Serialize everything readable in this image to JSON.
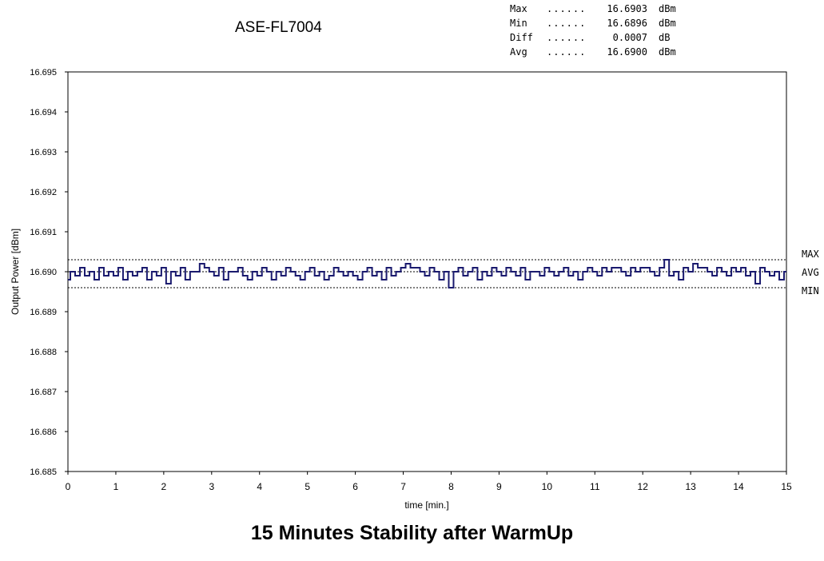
{
  "stats": {
    "rows": [
      {
        "name": "Max",
        "dots": "......",
        "value": "16.6903",
        "unit": "dBm"
      },
      {
        "name": "Min",
        "dots": "......",
        "value": "16.6896",
        "unit": "dBm"
      },
      {
        "name": "Diff",
        "dots": "......",
        "value": "0.0007",
        "unit": "dB"
      },
      {
        "name": "Avg",
        "dots": "......",
        "value": "16.6900",
        "unit": "dBm"
      }
    ]
  },
  "chart_data": {
    "type": "line",
    "title": "15 Minutes Stability after WarmUp",
    "subtitle": "ASE-FL7004",
    "xlabel": "time [min.]",
    "ylabel": "Output Power [dBm]",
    "xlim": [
      0,
      15
    ],
    "ylim": [
      16.685,
      16.695
    ],
    "xticks": [
      "0",
      "1",
      "2",
      "3",
      "4",
      "5",
      "6",
      "7",
      "8",
      "9",
      "10",
      "11",
      "12",
      "13",
      "14",
      "15"
    ],
    "yticks": [
      "16.685",
      "16.686",
      "16.687",
      "16.688",
      "16.689",
      "16.690",
      "16.691",
      "16.692",
      "16.693",
      "16.694",
      "16.695"
    ],
    "grid": false,
    "reference_lines": [
      {
        "label": "MAX",
        "value": 16.6903
      },
      {
        "label": "AVG",
        "value": 16.69
      },
      {
        "label": "MIN",
        "value": 16.6896
      }
    ],
    "series_color": "#1a1a6e",
    "series": [
      {
        "x": [
          0,
          0.1,
          0.2,
          0.3,
          0.4,
          0.5,
          0.6,
          0.7,
          0.8,
          0.9,
          1,
          1.1,
          1.2,
          1.3,
          1.4,
          1.5,
          1.6,
          1.7,
          1.8,
          1.9,
          2,
          2.1,
          2.2,
          2.3,
          2.4,
          2.5,
          2.6,
          2.7,
          2.8,
          2.9,
          3,
          3.1,
          3.2,
          3.3,
          3.4,
          3.5,
          3.6,
          3.7,
          3.8,
          3.9,
          4,
          4.1,
          4.2,
          4.3,
          4.4,
          4.5,
          4.6,
          4.7,
          4.8,
          4.9,
          5,
          5.1,
          5.2,
          5.3,
          5.4,
          5.5,
          5.6,
          5.7,
          5.8,
          5.9,
          6,
          6.1,
          6.2,
          6.3,
          6.4,
          6.5,
          6.6,
          6.7,
          6.8,
          6.9,
          7,
          7.1,
          7.2,
          7.3,
          7.4,
          7.5,
          7.6,
          7.7,
          7.8,
          7.9,
          8,
          8.1,
          8.2,
          8.3,
          8.4,
          8.5,
          8.6,
          8.7,
          8.8,
          8.9,
          9,
          9.1,
          9.2,
          9.3,
          9.4,
          9.5,
          9.6,
          9.7,
          9.8,
          9.9,
          10,
          10.1,
          10.2,
          10.3,
          10.4,
          10.5,
          10.6,
          10.7,
          10.8,
          10.9,
          11,
          11.1,
          11.2,
          11.3,
          11.4,
          11.5,
          11.6,
          11.7,
          11.8,
          11.9,
          12,
          12.1,
          12.2,
          12.3,
          12.4,
          12.5,
          12.6,
          12.7,
          12.8,
          12.9,
          13,
          13.1,
          13.2,
          13.3,
          13.4,
          13.5,
          13.6,
          13.7,
          13.8,
          13.9,
          14,
          14.1,
          14.2,
          14.3,
          14.4,
          14.5,
          14.6,
          14.7,
          14.8,
          14.9,
          15
        ],
        "values": [
          16.6898,
          16.69,
          16.6899,
          16.6901,
          16.6899,
          16.69,
          16.6898,
          16.6901,
          16.6899,
          16.69,
          16.6899,
          16.6901,
          16.6898,
          16.69,
          16.6899,
          16.69,
          16.6901,
          16.6898,
          16.69,
          16.6899,
          16.6901,
          16.6897,
          16.69,
          16.6899,
          16.6901,
          16.6898,
          16.69,
          16.69,
          16.6902,
          16.6901,
          16.69,
          16.6899,
          16.6901,
          16.6898,
          16.69,
          16.69,
          16.6901,
          16.6899,
          16.6898,
          16.69,
          16.6899,
          16.6901,
          16.69,
          16.6898,
          16.69,
          16.6899,
          16.6901,
          16.69,
          16.6899,
          16.6898,
          16.69,
          16.6901,
          16.6899,
          16.69,
          16.6898,
          16.6899,
          16.6901,
          16.69,
          16.6899,
          16.69,
          16.6899,
          16.6898,
          16.69,
          16.6901,
          16.6899,
          16.69,
          16.6898,
          16.6901,
          16.6899,
          16.69,
          16.6901,
          16.6902,
          16.6901,
          16.6901,
          16.69,
          16.6899,
          16.6901,
          16.69,
          16.6898,
          16.69,
          16.6896,
          16.69,
          16.6901,
          16.6899,
          16.69,
          16.6901,
          16.6898,
          16.69,
          16.6899,
          16.6901,
          16.69,
          16.6899,
          16.6901,
          16.69,
          16.6899,
          16.6901,
          16.6898,
          16.69,
          16.69,
          16.6899,
          16.6901,
          16.69,
          16.6899,
          16.69,
          16.6901,
          16.6899,
          16.69,
          16.6898,
          16.69,
          16.6901,
          16.69,
          16.6899,
          16.6901,
          16.69,
          16.6901,
          16.6901,
          16.69,
          16.6899,
          16.6901,
          16.69,
          16.6901,
          16.6901,
          16.69,
          16.6899,
          16.6901,
          16.6903,
          16.6899,
          16.69,
          16.6898,
          16.6901,
          16.69,
          16.6902,
          16.6901,
          16.6901,
          16.69,
          16.6899,
          16.6901,
          16.69,
          16.6899,
          16.6901,
          16.69,
          16.6901,
          16.6899,
          16.69,
          16.6897,
          16.6901,
          16.69,
          16.6899,
          16.69,
          16.6898,
          16.69
        ]
      }
    ]
  }
}
